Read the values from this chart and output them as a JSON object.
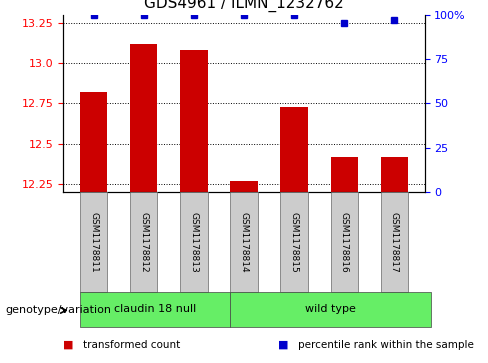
{
  "title": "GDS4961 / ILMN_1232762",
  "samples": [
    "GSM1178811",
    "GSM1178812",
    "GSM1178813",
    "GSM1178814",
    "GSM1178815",
    "GSM1178816",
    "GSM1178817"
  ],
  "bar_values": [
    12.82,
    13.12,
    13.08,
    12.27,
    12.73,
    12.42,
    12.42
  ],
  "percentile_values": [
    100,
    100,
    100,
    100,
    100,
    95,
    97
  ],
  "ylim": [
    12.2,
    13.3
  ],
  "yticks_left": [
    12.25,
    12.5,
    12.75,
    13.0,
    13.25
  ],
  "yticks_right": [
    0,
    25,
    50,
    75,
    100
  ],
  "bar_color": "#cc0000",
  "percentile_color": "#0000cc",
  "bar_bottom": 12.2,
  "groups": [
    {
      "label": "claudin 18 null",
      "start": 0,
      "end": 3
    },
    {
      "label": "wild type",
      "start": 3,
      "end": 7
    }
  ],
  "group_color": "#66ee66",
  "group_label_text": "genotype/variation",
  "legend_items": [
    {
      "label": "transformed count",
      "color": "#cc0000"
    },
    {
      "label": "percentile rank within the sample",
      "color": "#0000cc"
    }
  ],
  "background_color": "#ffffff",
  "sample_box_color": "#cccccc",
  "fig_width": 4.88,
  "fig_height": 3.63,
  "dpi": 100
}
